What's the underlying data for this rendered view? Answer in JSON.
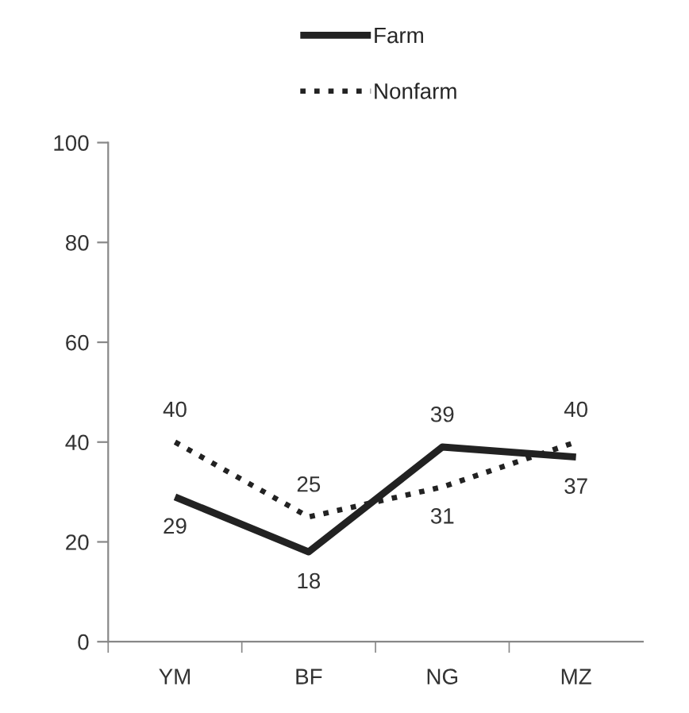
{
  "chart_data": {
    "type": "line",
    "categories": [
      "YM",
      "BF",
      "NG",
      "MZ"
    ],
    "series": [
      {
        "name": "Farm",
        "color": "#222222",
        "line_style": "solid",
        "values": [
          29,
          18,
          39,
          37
        ]
      },
      {
        "name": "Nonfarm",
        "color": "#222222",
        "line_style": "dotted",
        "values": [
          40,
          25,
          31,
          40
        ]
      }
    ],
    "ylim": [
      0,
      100
    ],
    "yticks": [
      0,
      20,
      40,
      60,
      80,
      100
    ],
    "grid": false,
    "legend": "top",
    "data_labels": true,
    "marker": "none"
  }
}
